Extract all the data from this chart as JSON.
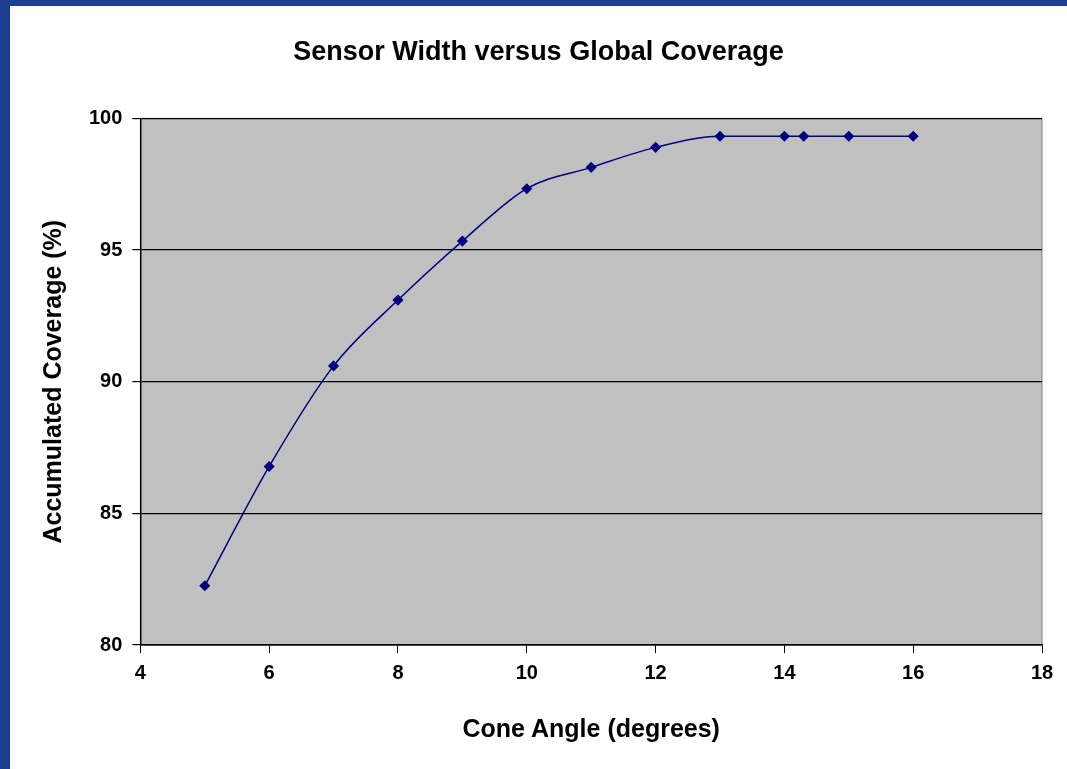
{
  "chart_data": {
    "type": "line",
    "title": "Sensor Width versus Global Coverage",
    "xlabel": "Cone Angle (degrees)",
    "ylabel": "Accumulated Coverage (%)",
    "x": [
      5,
      6,
      7,
      8,
      9,
      10,
      11,
      12,
      13,
      14,
      14.3,
      15,
      16
    ],
    "series": [
      {
        "color": "#000080",
        "values": [
          82.25,
          86.78,
          90.6,
          93.1,
          95.34,
          97.33,
          98.14,
          98.9,
          99.32,
          99.32,
          99.32,
          99.32,
          99.32
        ]
      }
    ],
    "xlim": [
      4,
      18
    ],
    "xticks": [
      4,
      6,
      8,
      10,
      12,
      14,
      16,
      18
    ],
    "ylim": [
      80,
      100
    ],
    "yticks": [
      80,
      85,
      90,
      95,
      100
    ],
    "grid": "y",
    "legend": false,
    "marker": "diamond",
    "line_style": "solid"
  }
}
